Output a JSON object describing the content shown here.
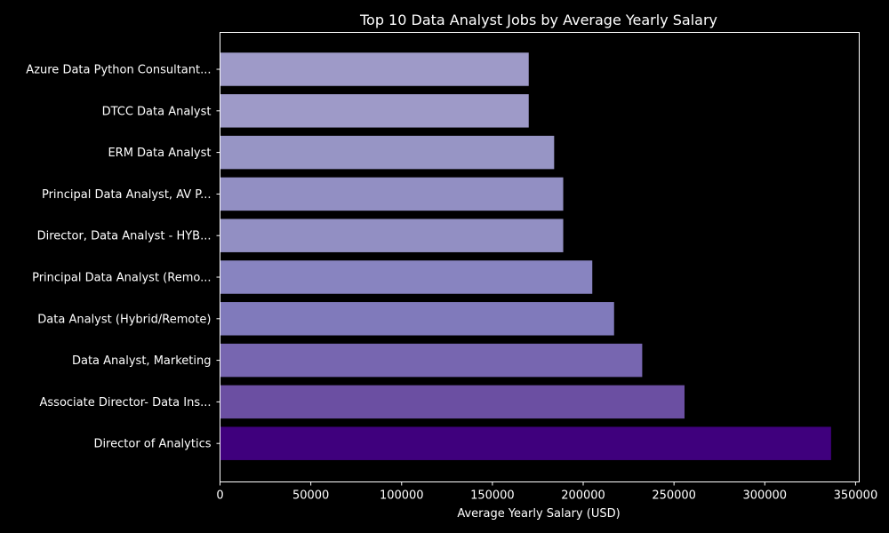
{
  "chart_data": {
    "type": "bar",
    "orientation": "horizontal",
    "title": "Top 10 Data Analyst Jobs by Average Yearly Salary",
    "xlabel": "Average Yearly Salary (USD)",
    "ylabel": "",
    "xlim": [
      0,
      352000
    ],
    "xticks": [
      "0",
      "50000",
      "100000",
      "150000",
      "200000",
      "250000",
      "300000",
      "350000"
    ],
    "grid": false,
    "background": "#000000",
    "categories": [
      "Azure Data Python Consultant...",
      "DTCC Data Analyst",
      "ERM Data Analyst",
      "Principal Data Analyst, AV P...",
      "Director, Data Analyst - HYB...",
      "Principal Data Analyst (Remo...",
      "Data Analyst (Hybrid/Remote)",
      "Data Analyst, Marketing",
      "Associate Director- Data Ins...",
      "Director of Analytics"
    ],
    "values": [
      170000,
      170000,
      184000,
      189000,
      189000,
      205000,
      217000,
      232500,
      255800,
      336500
    ],
    "colors": [
      "#9e9ac8",
      "#9e9ac8",
      "#9795c5",
      "#928fc3",
      "#928fc3",
      "#8884c0",
      "#807abb",
      "#7766b0",
      "#6b4fa2",
      "#3f007d"
    ]
  }
}
